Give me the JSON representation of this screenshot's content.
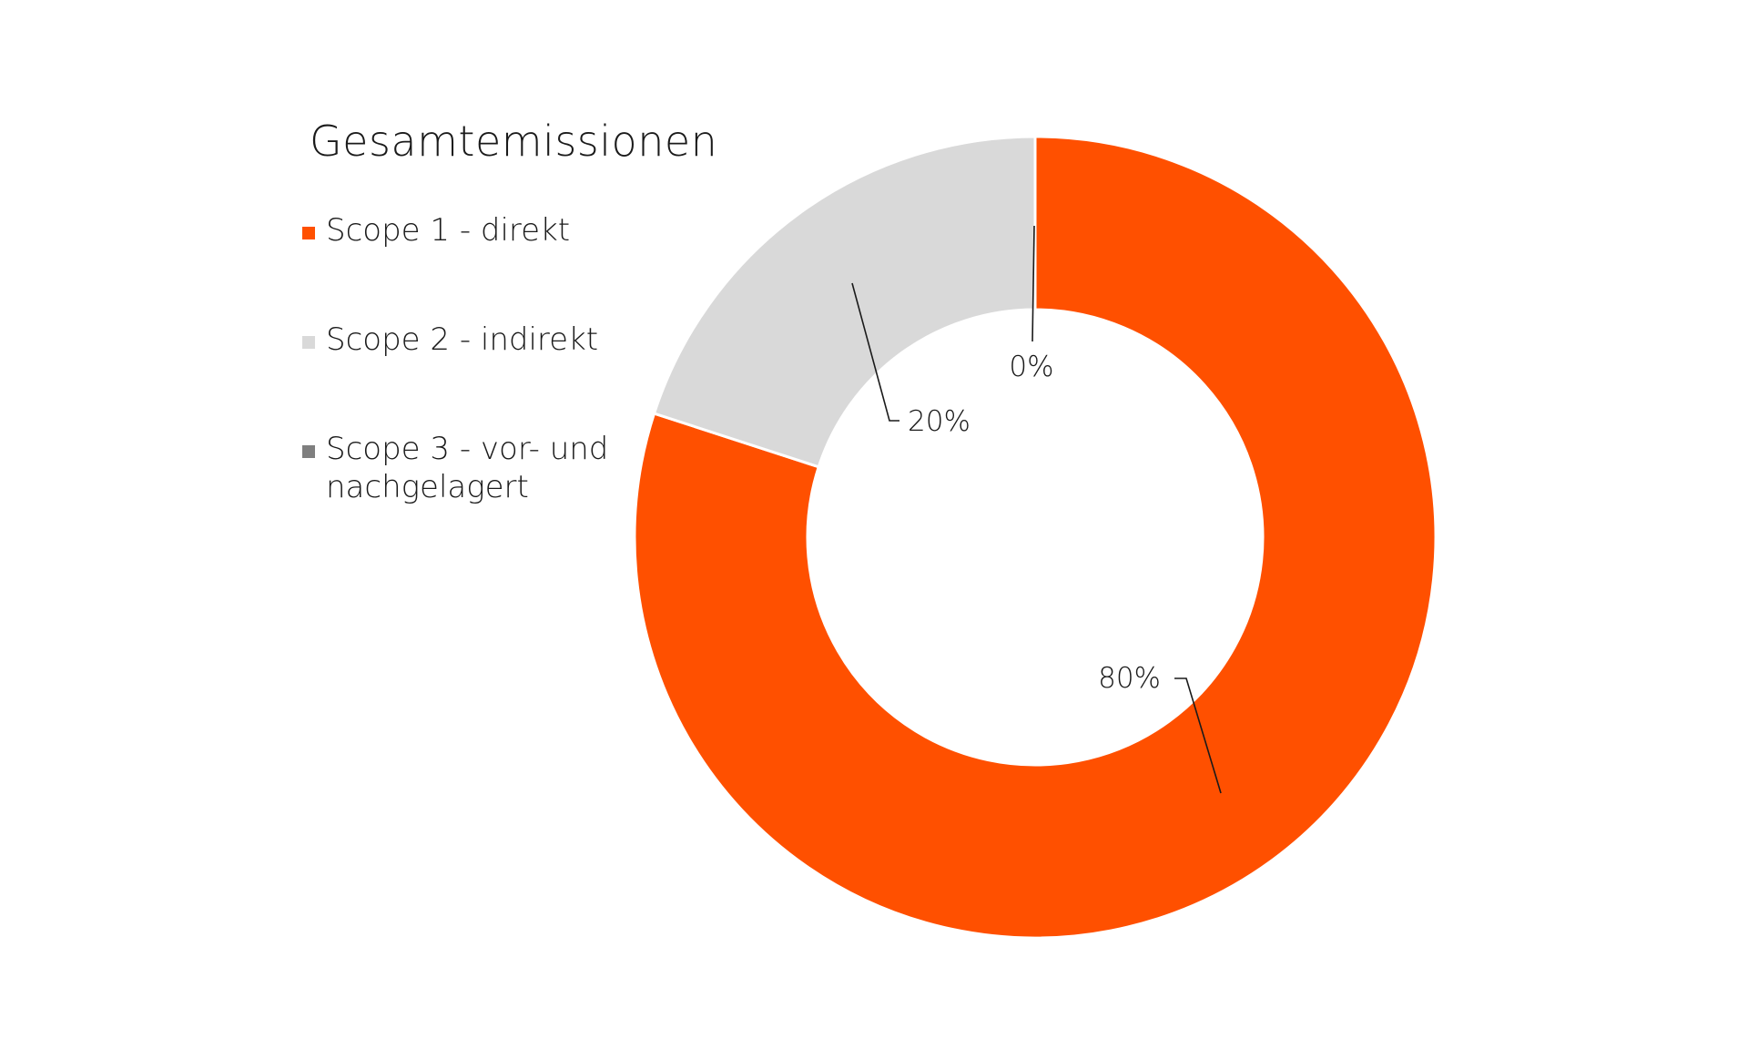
{
  "chart_data": {
    "type": "pie",
    "variant": "donut",
    "title": "Gesamtemissionen",
    "categories": [
      "Scope 1 - direkt",
      "Scope 2 - indirekt",
      "Scope 3 - vor- und nachgelagert"
    ],
    "values": [
      80,
      20,
      0
    ],
    "data_labels": [
      "80%",
      "20%",
      "0%"
    ],
    "colors": [
      "#ff5000",
      "#d9d9d9",
      "#7f7f7f"
    ],
    "legend_position": "left",
    "start_angle_deg": 0,
    "direction": "clockwise"
  }
}
